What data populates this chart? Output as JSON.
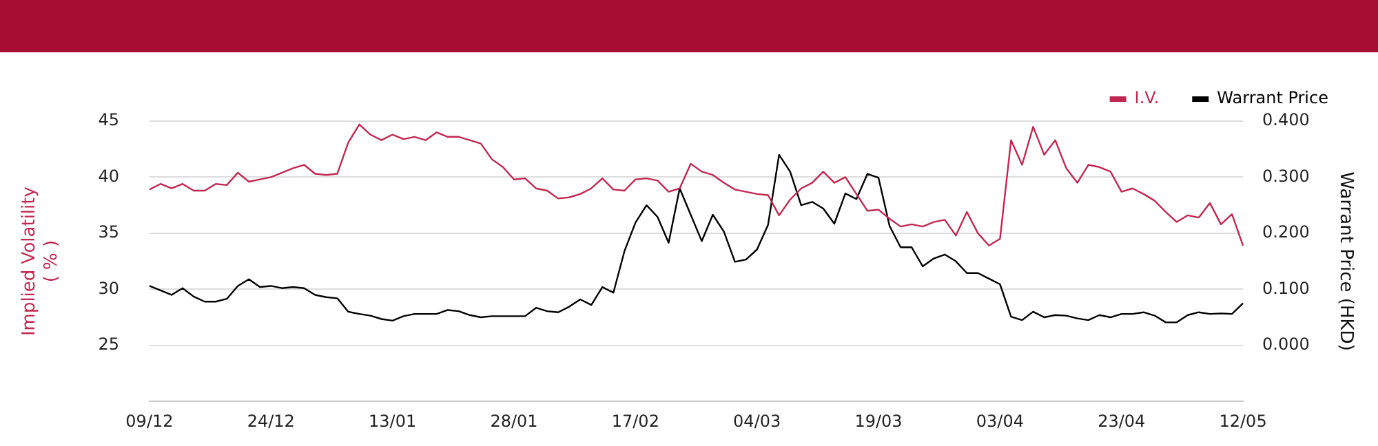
{
  "chart_data": {
    "type": "line",
    "categories": [
      "09/12",
      null,
      null,
      null,
      null,
      null,
      null,
      null,
      null,
      null,
      null,
      "24/12",
      null,
      null,
      null,
      null,
      null,
      null,
      null,
      null,
      null,
      null,
      "13/01",
      null,
      null,
      null,
      null,
      null,
      null,
      null,
      null,
      null,
      null,
      "28/01",
      null,
      null,
      null,
      null,
      null,
      null,
      null,
      null,
      null,
      null,
      "17/02",
      null,
      null,
      null,
      null,
      null,
      null,
      null,
      null,
      null,
      null,
      "04/03",
      null,
      null,
      null,
      null,
      null,
      null,
      null,
      null,
      null,
      null,
      "19/03",
      null,
      null,
      null,
      null,
      null,
      null,
      null,
      null,
      null,
      null,
      "03/04",
      null,
      null,
      null,
      null,
      null,
      null,
      null,
      null,
      null,
      null,
      "23/04",
      null,
      null,
      null,
      null,
      null,
      null,
      null,
      null,
      null,
      null,
      "12/05"
    ],
    "series": [
      {
        "name": "I.V.",
        "color": "#c0284f",
        "axis": "y",
        "values": [
          38.9,
          39.4,
          39.0,
          39.4,
          38.8,
          38.8,
          39.4,
          39.3,
          40.4,
          39.6,
          39.8,
          40.0,
          40.4,
          40.8,
          41.1,
          40.3,
          40.2,
          40.3,
          43.1,
          44.7,
          43.8,
          43.3,
          43.8,
          43.4,
          43.6,
          43.3,
          44.0,
          43.6,
          43.6,
          43.3,
          43.0,
          41.6,
          40.9,
          39.8,
          39.9,
          39.0,
          38.8,
          38.1,
          38.2,
          38.5,
          39.0,
          39.9,
          38.9,
          38.8,
          39.8,
          39.9,
          39.7,
          38.7,
          39.0,
          41.2,
          40.5,
          40.2,
          39.5,
          38.9,
          38.7,
          38.5,
          38.4,
          36.6,
          38.0,
          39.0,
          39.5,
          40.5,
          39.5,
          40.0,
          38.5,
          37.0,
          37.1,
          36.3,
          35.6,
          35.8,
          35.6,
          36.0,
          36.2,
          34.8,
          36.9,
          35.0,
          33.9,
          34.5,
          43.3,
          41.1,
          44.5,
          42.0,
          43.3,
          40.8,
          39.5,
          41.1,
          40.9,
          40.5,
          38.7,
          39.0,
          38.5,
          37.9,
          36.9,
          36.0,
          36.6,
          36.4,
          37.7,
          35.8,
          36.7,
          33.9
        ]
      },
      {
        "name": "Warrant Price",
        "color": "#000000",
        "axis": "y2",
        "values": [
          0.106,
          0.098,
          0.09,
          0.102,
          0.087,
          0.078,
          0.078,
          0.083,
          0.106,
          0.118,
          0.104,
          0.106,
          0.102,
          0.104,
          0.102,
          0.09,
          0.086,
          0.084,
          0.06,
          0.056,
          0.053,
          0.047,
          0.044,
          0.052,
          0.056,
          0.056,
          0.056,
          0.063,
          0.061,
          0.054,
          0.05,
          0.052,
          0.052,
          0.052,
          0.052,
          0.067,
          0.061,
          0.059,
          0.069,
          0.082,
          0.072,
          0.104,
          0.094,
          0.168,
          0.219,
          0.25,
          0.229,
          0.183,
          0.28,
          0.233,
          0.186,
          0.233,
          0.203,
          0.149,
          0.153,
          0.171,
          0.215,
          0.34,
          0.31,
          0.25,
          0.256,
          0.244,
          0.217,
          0.271,
          0.261,
          0.306,
          0.299,
          0.213,
          0.175,
          0.175,
          0.141,
          0.155,
          0.162,
          0.15,
          0.129,
          0.129,
          0.119,
          0.109,
          0.051,
          0.045,
          0.06,
          0.05,
          0.054,
          0.053,
          0.048,
          0.045,
          0.054,
          0.05,
          0.056,
          0.056,
          0.059,
          0.053,
          0.041,
          0.041,
          0.054,
          0.059,
          0.056,
          0.057,
          0.056,
          0.075
        ]
      }
    ],
    "ylabel": "Implied Volatility\n( % )",
    "y2label": "Warrant Price (HKD)",
    "ylim": [
      20,
      45
    ],
    "yticks": [
      25,
      30,
      35,
      40,
      45
    ],
    "y2lim": [
      -0.1,
      0.4
    ],
    "y2ticks": [
      {
        "value": 0,
        "label": "0.000"
      },
      {
        "value": 0.1,
        "label": "0.100"
      },
      {
        "value": 0.2,
        "label": "0.200"
      },
      {
        "value": 0.3,
        "label": "0.300"
      },
      {
        "value": 0.4,
        "label": "0.400"
      }
    ],
    "grid": "y",
    "legend": "top right",
    "marker": "none",
    "line_style": "solid"
  }
}
